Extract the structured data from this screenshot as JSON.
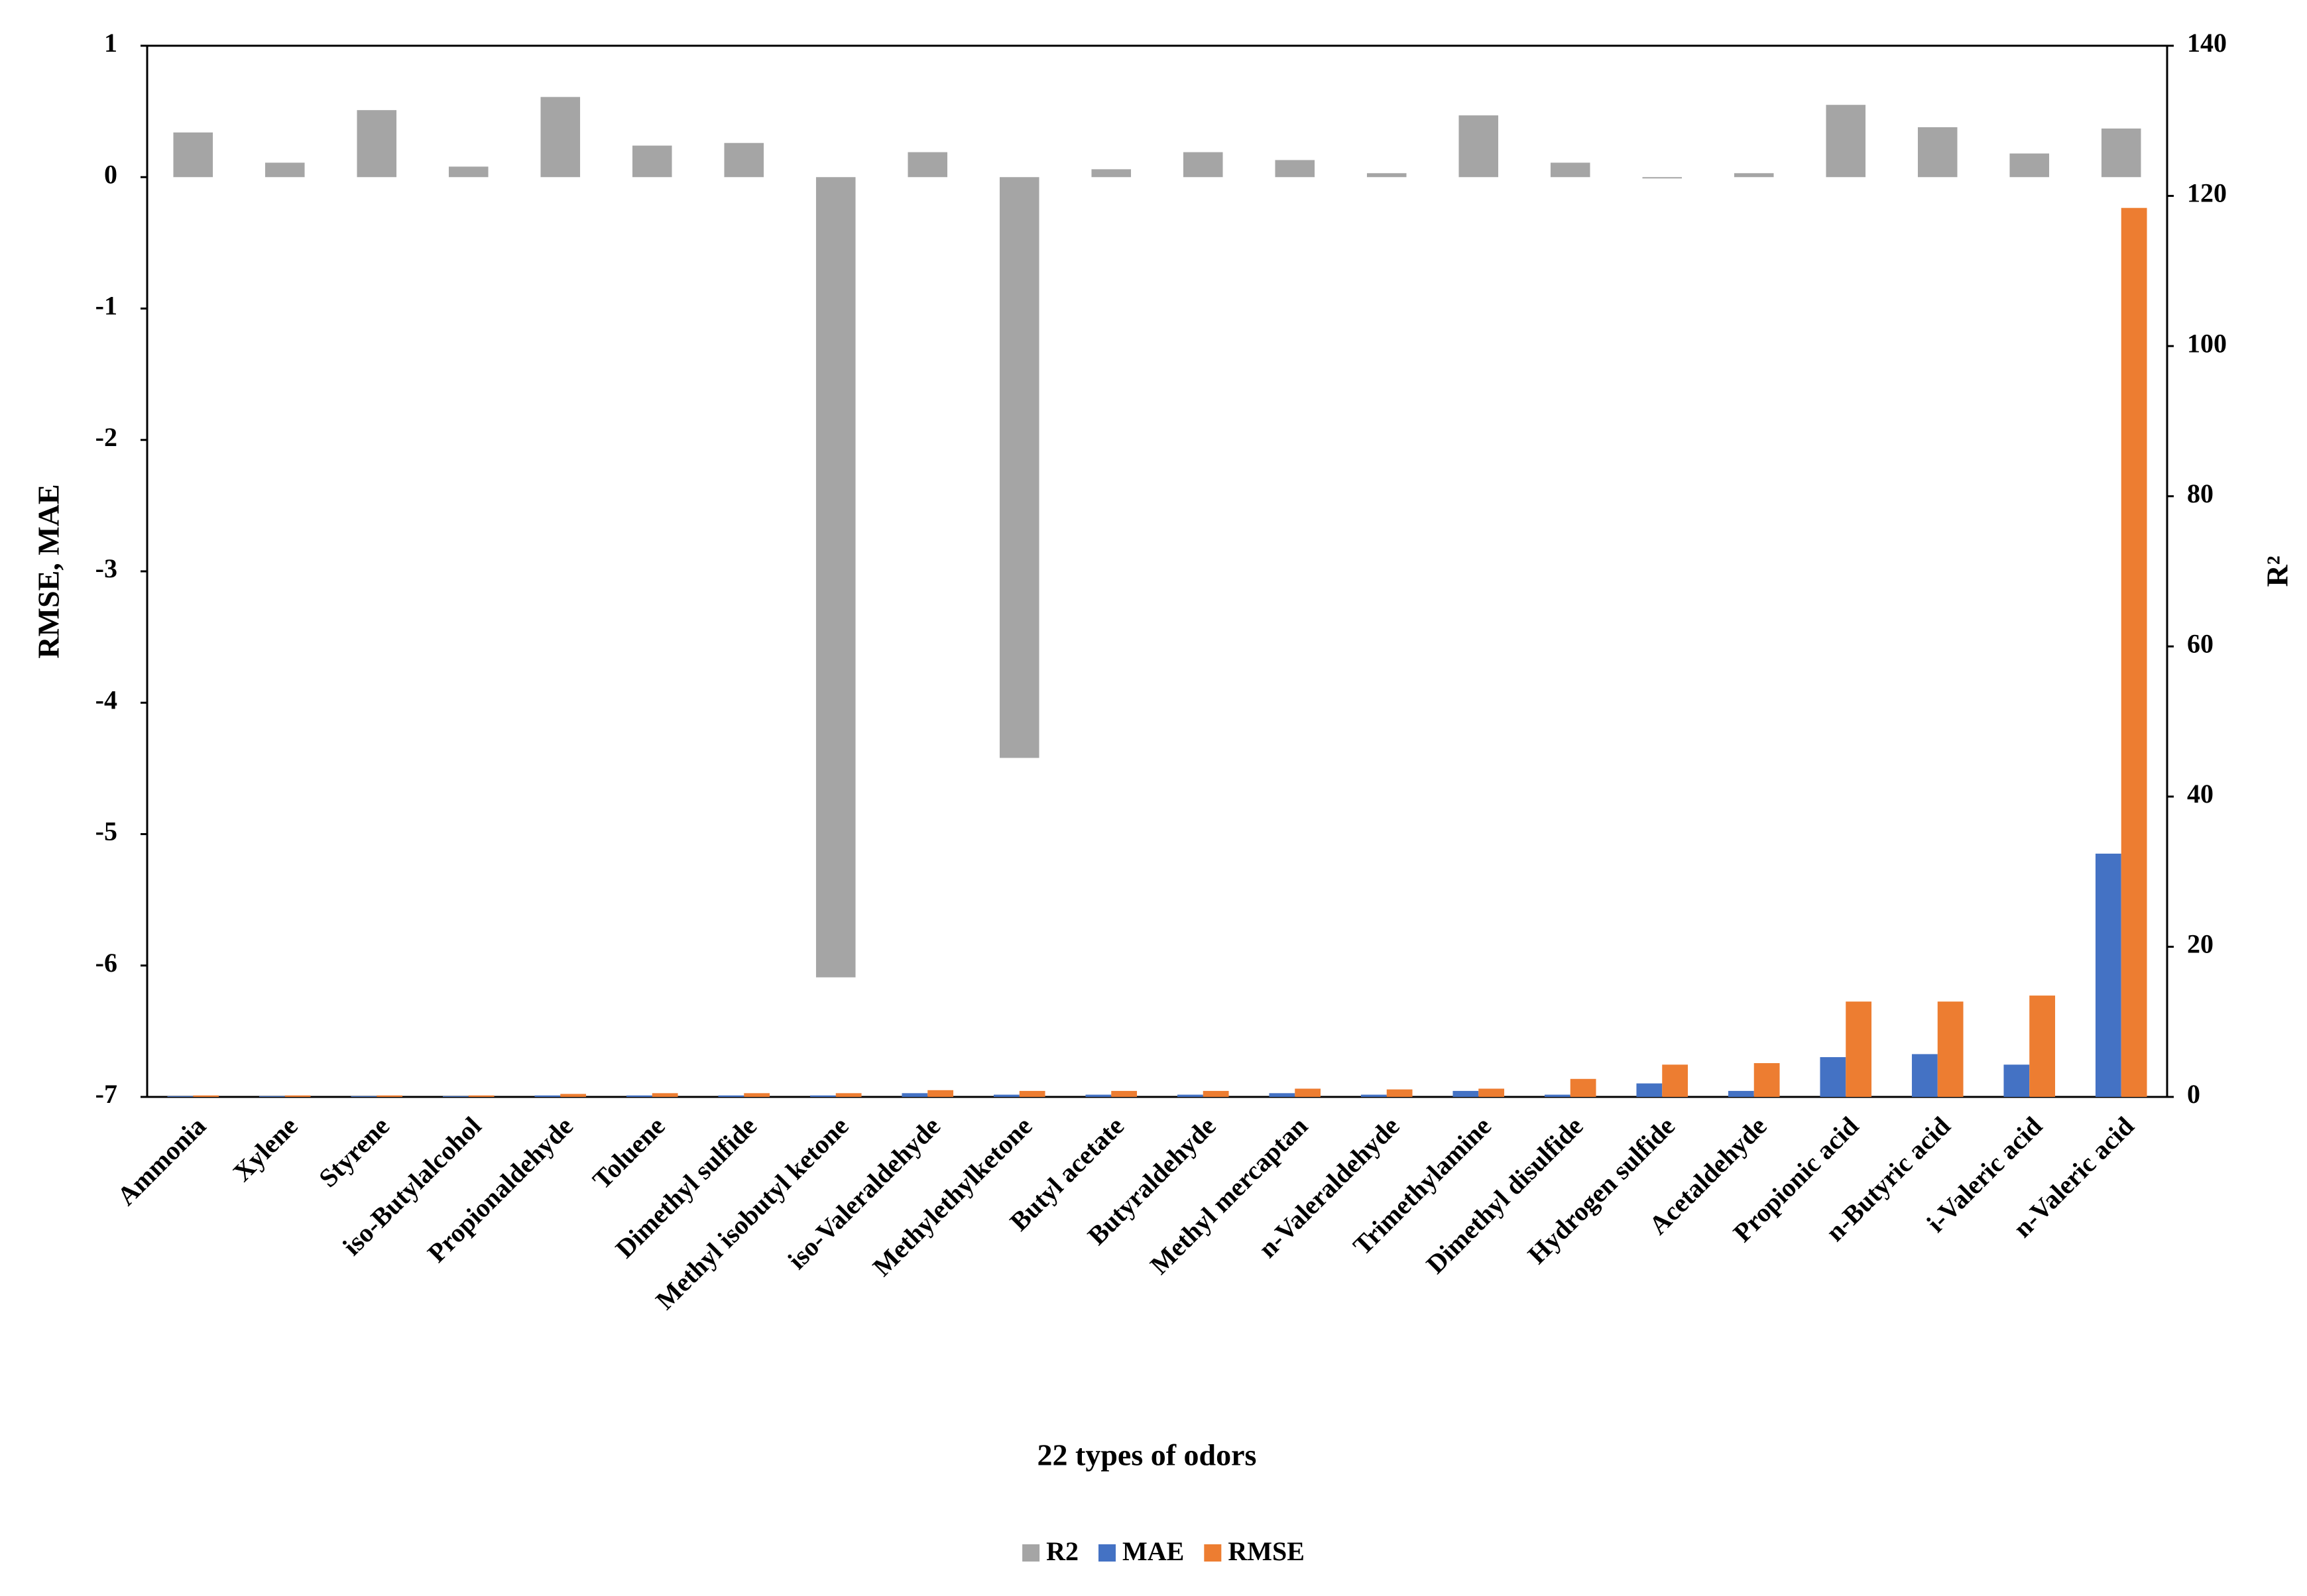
{
  "chart_data": {
    "type": "bar",
    "categories": [
      "Ammonia",
      "Xylene",
      "Styrene",
      "iso-Butylalcohol",
      "Propionaldehyde",
      "Toluene",
      "Dimethyl sulfide",
      "Methyl isobutyl ketone",
      "iso-Valeraldehyde",
      "Methylethylketone",
      "Butyl acetate",
      "Butyraldehyde",
      "Methyl mercaptan",
      "n-Valeraldehyde",
      "Trimethylamine",
      "Dimethyl disulfide",
      "Hydrogen sulfide",
      "Acetaldehyde",
      "Propionic acid",
      "n-Butyric acid",
      "i-Valeric acid",
      "n-Valeric acid"
    ],
    "series": [
      {
        "name": "R2",
        "color": "#a5a5a5",
        "axis": "y",
        "values": [
          0.34,
          0.11,
          0.51,
          0.08,
          0.61,
          0.24,
          0.26,
          -6.09,
          0.19,
          -4.42,
          0.06,
          0.19,
          0.13,
          0.03,
          0.47,
          0.11,
          -0.01,
          0.03,
          0.55,
          0.38,
          0.18,
          0.37
        ]
      },
      {
        "name": "MAE",
        "color": "#4472c4",
        "axis": "y2",
        "values": [
          0.1,
          0.1,
          0.1,
          0.1,
          0.2,
          0.2,
          0.2,
          0.2,
          0.5,
          0.3,
          0.3,
          0.3,
          0.5,
          0.3,
          0.8,
          0.3,
          1.8,
          0.8,
          5.3,
          5.7,
          4.3,
          32.4
        ]
      },
      {
        "name": "RMSE",
        "color": "#ed7d31",
        "axis": "y2",
        "values": [
          0.2,
          0.2,
          0.2,
          0.2,
          0.4,
          0.5,
          0.5,
          0.5,
          0.9,
          0.8,
          0.8,
          0.8,
          1.1,
          1.0,
          1.1,
          2.4,
          4.3,
          4.5,
          12.7,
          12.7,
          13.5,
          118.4
        ]
      }
    ],
    "ylabel": "RMSE, MAE",
    "y2label": "R²",
    "xlabel": "22 types of odors",
    "ylim": [
      -7,
      1
    ],
    "yticks": [
      -7,
      -6,
      -5,
      -4,
      -3,
      -2,
      -1,
      0,
      1
    ],
    "y2lim": [
      0,
      140
    ],
    "y2ticks": [
      0,
      20,
      40,
      60,
      80,
      100,
      120,
      140
    ],
    "legend": "bottom"
  }
}
